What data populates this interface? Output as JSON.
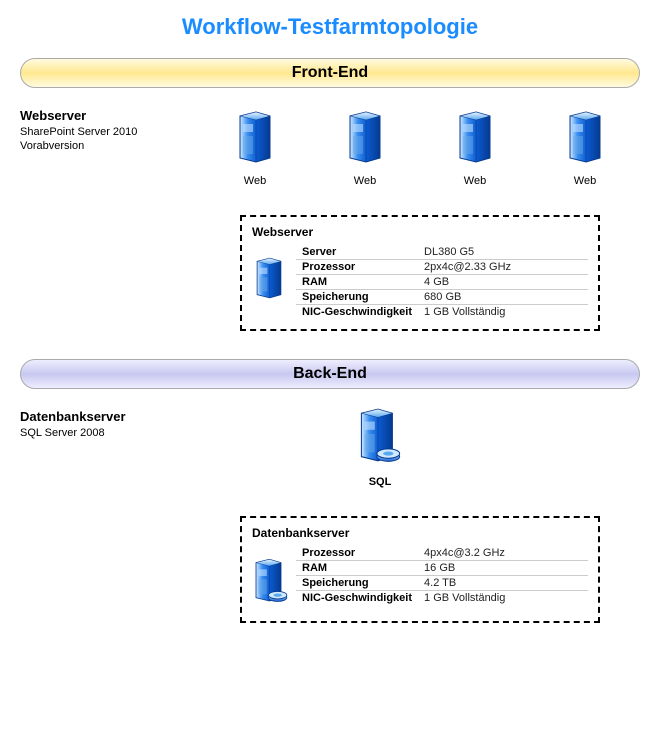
{
  "title": "Workflow-Testfarmtopologie",
  "colors": {
    "title": "#1a8cff",
    "banner_frontend_bg": [
      "#fffbe0",
      "#ffe890",
      "#fffbe0"
    ],
    "banner_backend_bg": [
      "#eeeeff",
      "#c8c8f0",
      "#eeeeff"
    ],
    "server_gradient": [
      "#a8d8ff",
      "#1560d0",
      "#0a3ca0"
    ],
    "disk_gradient": [
      "#a8d8ff",
      "#1570d8"
    ],
    "dash_border": "#000000",
    "grid_line": "#cccccc"
  },
  "frontend": {
    "banner": "Front-End",
    "heading": "Webserver",
    "sub": "SharePoint Server 2010\nVorabversion",
    "server_label": "Web",
    "server_count": 4,
    "spec_box_title": "Webserver",
    "specs": [
      {
        "k": "Server",
        "v": "DL380 G5"
      },
      {
        "k": "Prozessor",
        "v": "2px4c@2.33 GHz"
      },
      {
        "k": "RAM",
        "v": "4 GB"
      },
      {
        "k": "Speicherung",
        "v": "680 GB"
      },
      {
        "k": "NIC-Geschwindigkeit",
        "v": "1 GB Vollständig"
      }
    ]
  },
  "backend": {
    "banner": "Back-End",
    "heading": "Datenbankserver",
    "sub": "SQL Server 2008",
    "server_label": "SQL",
    "spec_box_title": "Datenbankserver",
    "specs": [
      {
        "k": "Prozessor",
        "v": "4px4c@3.2 GHz"
      },
      {
        "k": "RAM",
        "v": "16 GB"
      },
      {
        "k": "Speicherung",
        "v": "4.2 TB"
      },
      {
        "k": "NIC-Geschwindigkeit",
        "v": "1 GB Vollständig"
      }
    ]
  }
}
